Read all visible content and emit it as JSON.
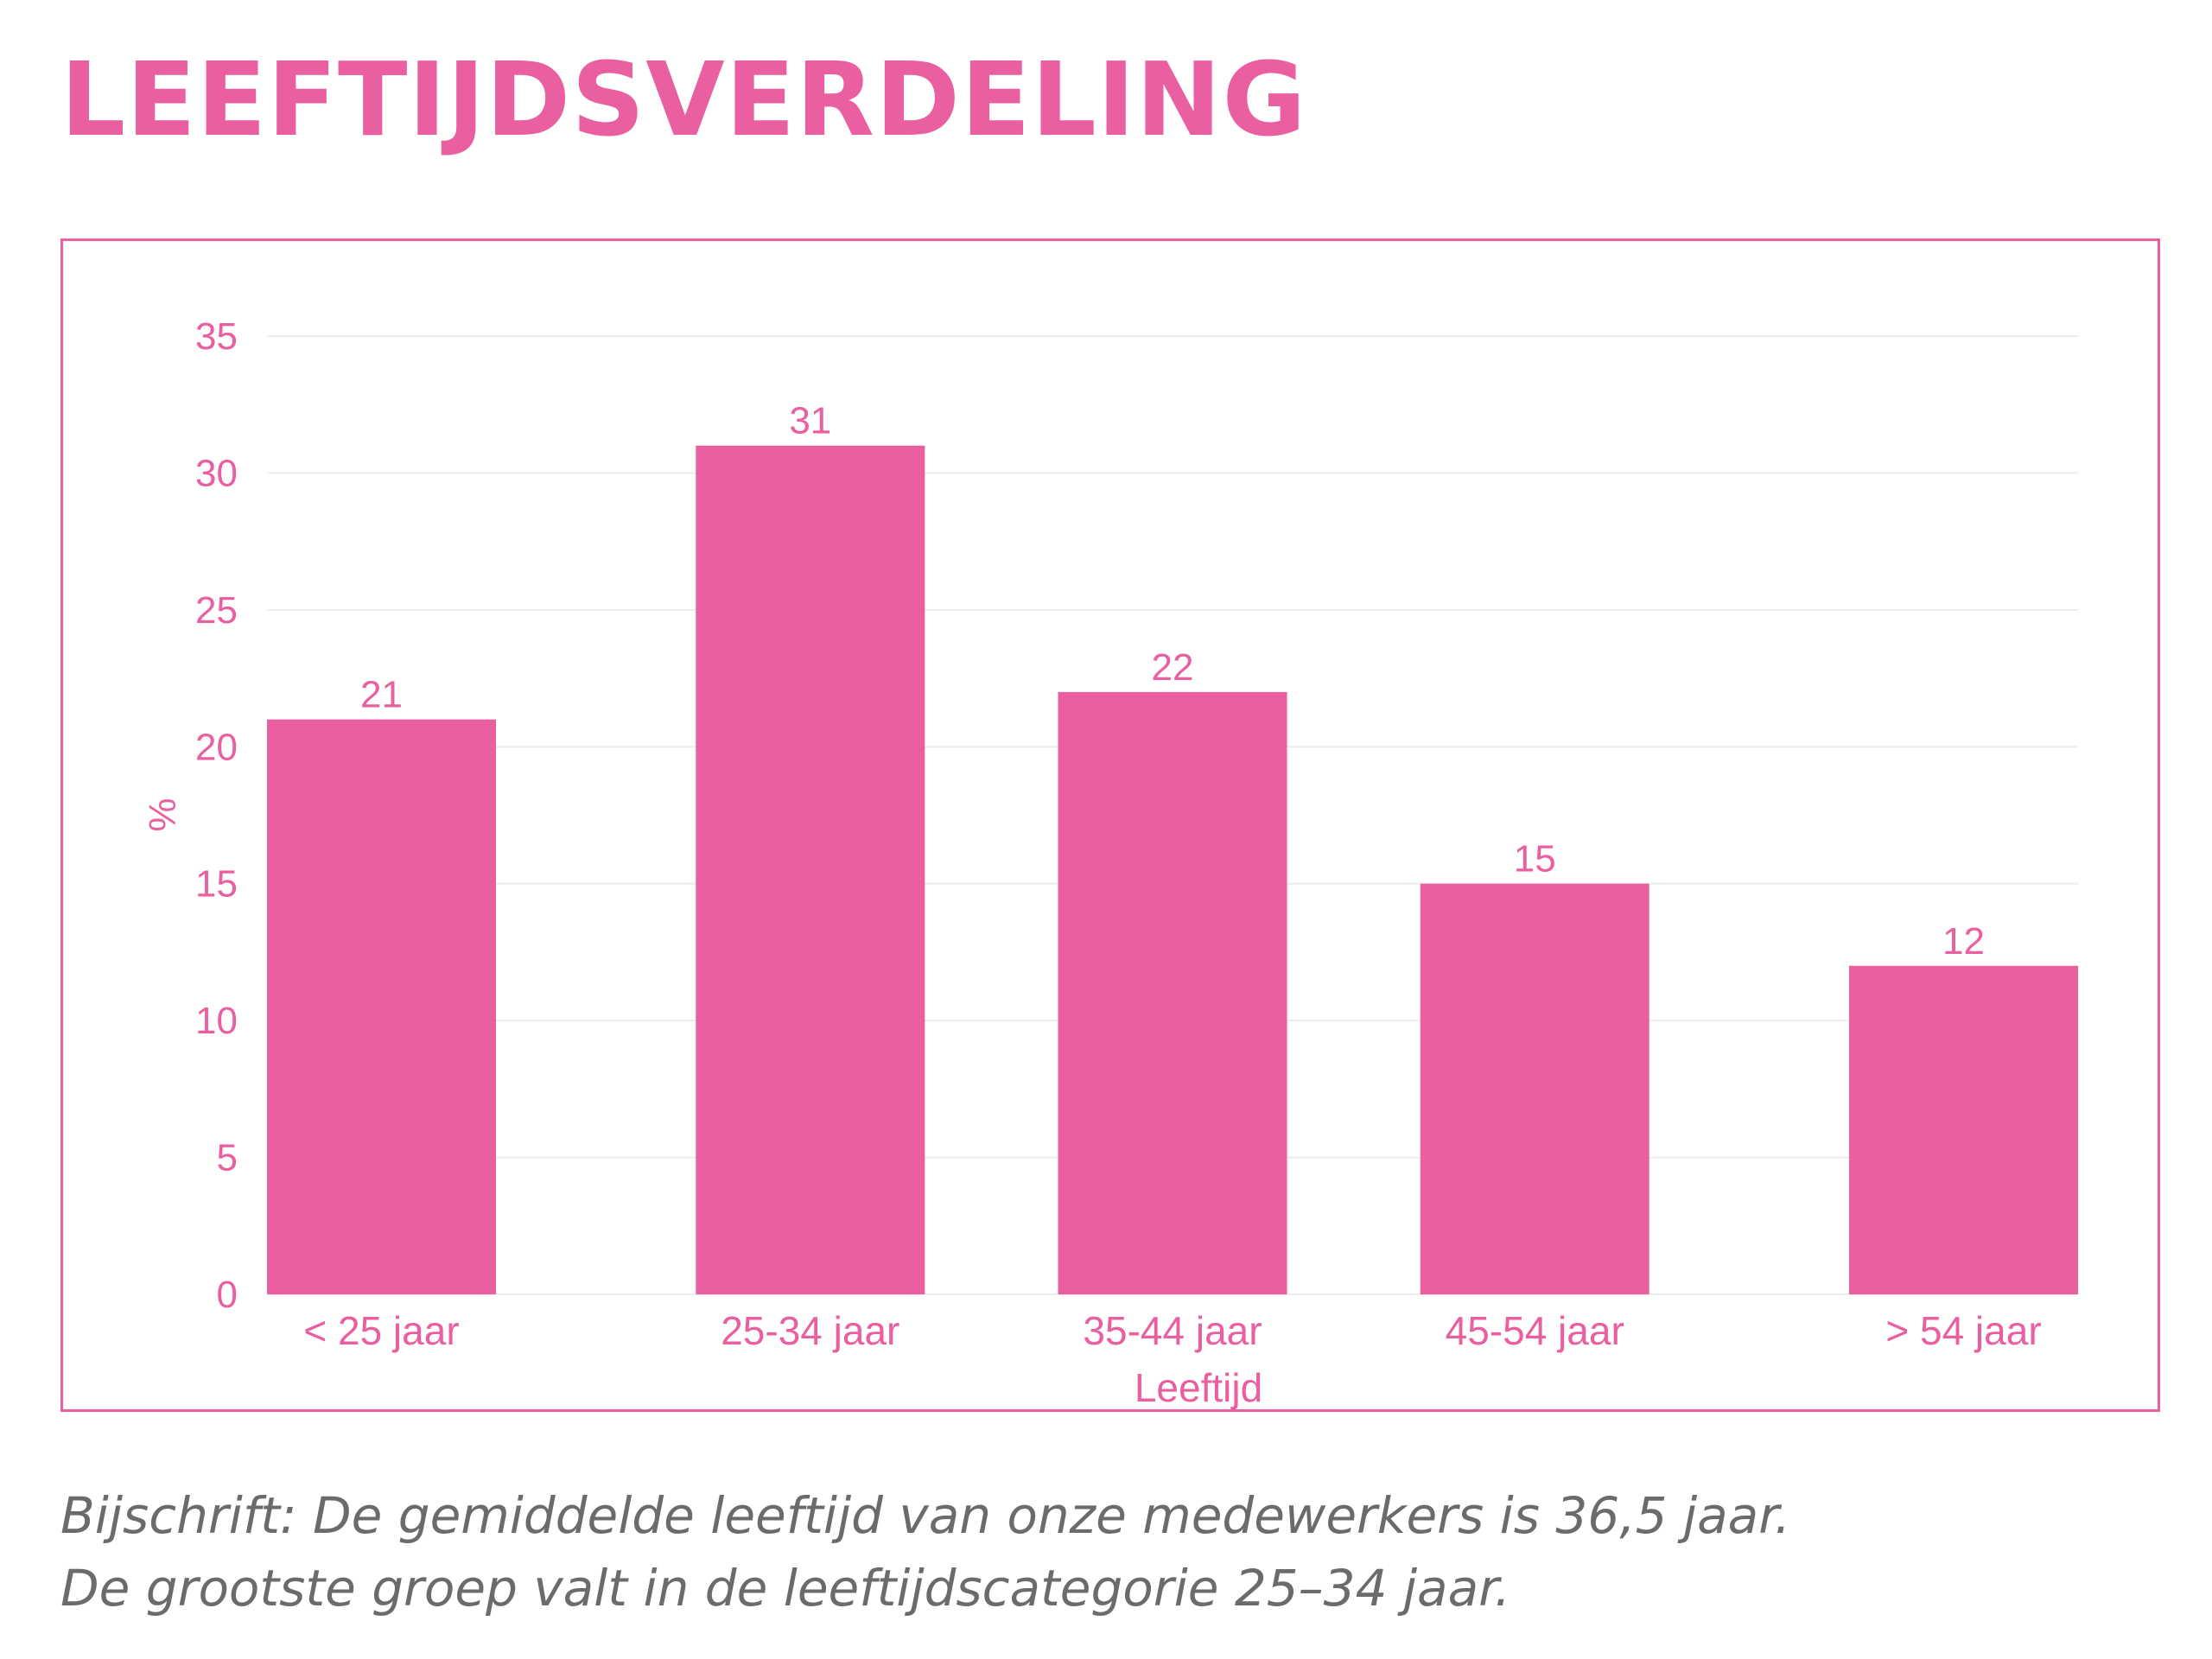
{
  "title": "LEEFTIJDSVERDELING",
  "caption": {
    "line1": "Bijschrift: De gemiddelde leeftijd van onze medewerkers is 36,5 jaar.",
    "line2": "De grootste groep valt in de leeftijdscategorie 25–34 jaar."
  },
  "colors": {
    "accent": "#e95f9f",
    "bar": "#e95f9f",
    "grid": "#ececec",
    "caption": "#6b6b6b"
  },
  "chart_data": {
    "type": "bar",
    "title": "",
    "xlabel": "Leeftijd",
    "ylabel": "%",
    "categories": [
      "< 25 jaar",
      "25-34 jaar",
      "35-44 jaar",
      "45-54 jaar",
      "> 54 jaar"
    ],
    "values": [
      21,
      31,
      22,
      15,
      12
    ],
    "data_labels": [
      "21",
      "31",
      "22",
      "15",
      "12"
    ],
    "ylim": [
      0,
      35
    ],
    "yticks": [
      0,
      5,
      10,
      15,
      20,
      25,
      30,
      35
    ],
    "ytick_labels": [
      "0",
      "5",
      "10",
      "15",
      "20",
      "25",
      "30",
      "35"
    ],
    "grid": true,
    "legend": "none"
  }
}
